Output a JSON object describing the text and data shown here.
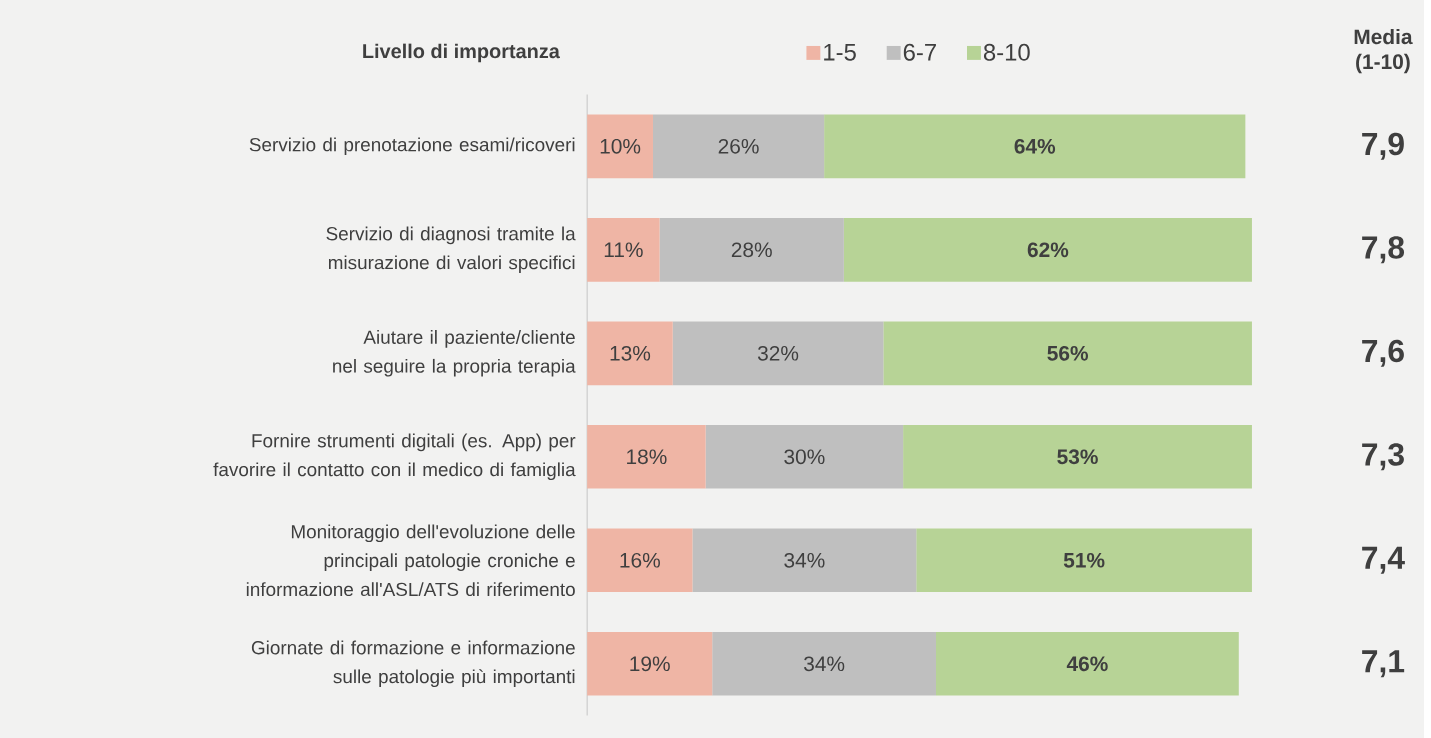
{
  "chart_data": {
    "type": "bar",
    "orientation": "horizontal",
    "stacked": true,
    "legend_title": "Livello di importanza",
    "legend": "top",
    "categories": [
      "Servizio di prenotazione esami/ricoveri",
      "Servizio di diagnosi tramite la misurazione di valori specifici",
      "Aiutare il paziente/cliente nel seguire la propria terapia",
      "Fornire strumenti digitali (es. App) per favorire il contatto con il medico di famiglia",
      "Monitoraggio dell'evoluzione delle principali patologie croniche e informazione all'ASL/ATS di riferimento",
      "Giornate di formazione e informazione sulle patologie più importanti"
    ],
    "series": [
      {
        "name": "1-5",
        "color": "#efb5a5",
        "values": [
          10,
          11,
          13,
          18,
          16,
          19
        ],
        "value_labels": [
          "10%",
          "11%",
          "13%",
          "18%",
          "16%",
          "19%"
        ]
      },
      {
        "name": "6-7",
        "color": "#bfbfbf",
        "values": [
          26,
          28,
          32,
          30,
          34,
          34
        ],
        "value_labels": [
          "26%",
          "28%",
          "32%",
          "30%",
          "34%",
          "34%"
        ]
      },
      {
        "name": "8-10",
        "color": "#b7d396",
        "values": [
          64,
          62,
          56,
          53,
          51,
          46
        ],
        "value_labels": [
          "**64%**",
          "**62%**",
          "**56%**",
          "**53%**",
          "**51%**",
          "**46%**"
        ]
      }
    ],
    "annotations": [
      "Media (1-10)",
      "7,9",
      "7,8",
      "7,6",
      "7,3",
      "7,4",
      "7,1"
    ]
  }
}
